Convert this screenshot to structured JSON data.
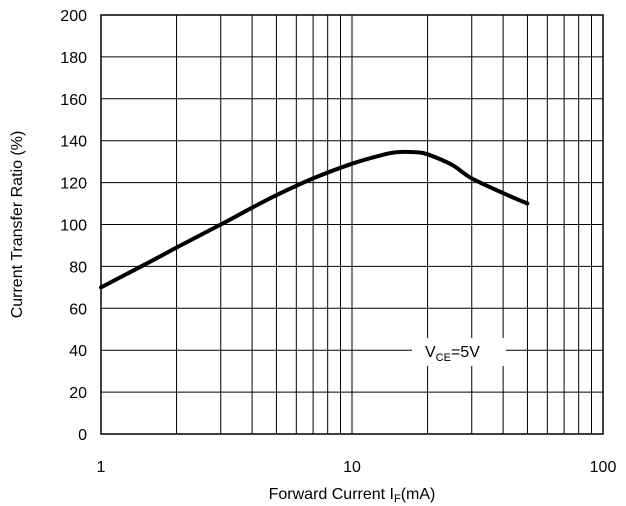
{
  "chart_data": {
    "type": "line",
    "title": "",
    "xlabel": {
      "main": "Forward Current I",
      "sub": "F",
      "unit": "(mA)"
    },
    "ylabel": "Current Transfer Ratio (%)",
    "xscale": "log",
    "xlim": [
      1,
      100
    ],
    "ylim": [
      0,
      200
    ],
    "grid": true,
    "x_ticks": [
      "1",
      "10",
      "100"
    ],
    "y_ticks": [
      "0",
      "20",
      "40",
      "60",
      "80",
      "100",
      "120",
      "140",
      "160",
      "180",
      "200"
    ],
    "annotation": {
      "main": "V",
      "sub": "CE",
      "rest": "=5V"
    },
    "series": [
      {
        "x": [
          1,
          1.5,
          2,
          3,
          4,
          5,
          7,
          10,
          13,
          15,
          18,
          20,
          25,
          30,
          40,
          50
        ],
        "y": [
          70,
          81,
          89,
          100,
          108,
          114,
          122,
          129,
          133,
          134.5,
          134.5,
          133.5,
          128.5,
          122,
          115,
          110
        ]
      }
    ],
    "line_color": "#000000"
  }
}
